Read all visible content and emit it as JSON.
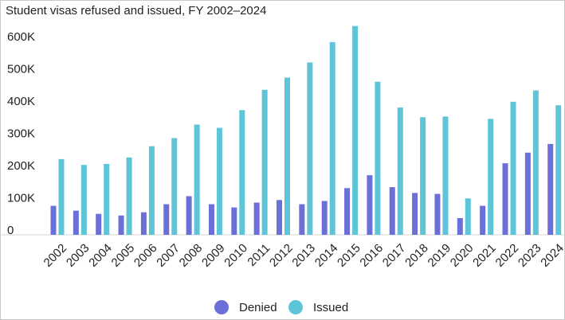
{
  "chart_data": {
    "type": "bar",
    "title": "Student visas refused and issued, FY 2002–2024",
    "xlabel": "",
    "ylabel": "",
    "ylim": [
      0,
      620000
    ],
    "y_ticks": [
      0,
      100000,
      200000,
      300000,
      400000,
      500000,
      600000
    ],
    "y_tick_labels": [
      "0",
      "100K",
      "200K",
      "300K",
      "400K",
      "500K",
      "600K"
    ],
    "categories": [
      "2002",
      "2003",
      "2004",
      "2005",
      "2006",
      "2007",
      "2008",
      "2009",
      "2010",
      "2011",
      "2012",
      "2013",
      "2014",
      "2015",
      "2016",
      "2017",
      "2018",
      "2019",
      "2020",
      "2021",
      "2022",
      "2023",
      "2024"
    ],
    "series": [
      {
        "name": "Denied",
        "color": "#6b6fd8",
        "values": [
          90000,
          75000,
          65000,
          60000,
          70000,
          95000,
          120000,
          95000,
          85000,
          100000,
          108000,
          95000,
          105000,
          145000,
          185000,
          148000,
          130000,
          127000,
          52000,
          90000,
          222000,
          255000,
          282000
        ]
      },
      {
        "name": "Issued",
        "color": "#5ec5d8",
        "values": [
          235000,
          217000,
          220000,
          240000,
          275000,
          300000,
          342000,
          332000,
          387000,
          450000,
          488000,
          535000,
          598000,
          648000,
          475000,
          395000,
          365000,
          367000,
          113000,
          360000,
          413000,
          448000,
          402000
        ]
      }
    ],
    "legend": {
      "position": "bottom-center"
    },
    "grid": false
  }
}
